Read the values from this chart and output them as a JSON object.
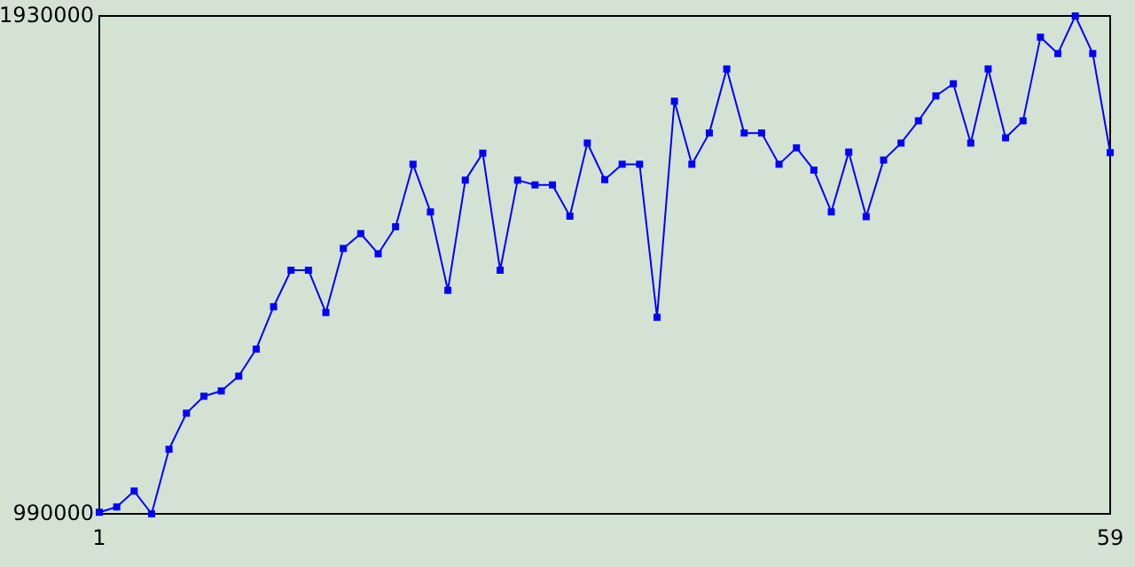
{
  "chart_data": {
    "type": "line",
    "x": [
      1,
      2,
      3,
      4,
      5,
      6,
      7,
      8,
      9,
      10,
      11,
      12,
      13,
      14,
      15,
      16,
      17,
      18,
      19,
      20,
      21,
      22,
      23,
      24,
      25,
      26,
      27,
      28,
      29,
      30,
      31,
      32,
      33,
      34,
      35,
      36,
      37,
      38,
      39,
      40,
      41,
      42,
      43,
      44,
      45,
      46,
      47,
      48,
      49,
      50,
      51,
      52,
      53,
      54,
      55,
      56,
      57,
      58,
      59
    ],
    "series": [
      {
        "color": "#0000ff",
        "values": [
          993000,
          1003000,
          1033000,
          990000,
          1112000,
          1180000,
          1212000,
          1222000,
          1250000,
          1301000,
          1381000,
          1450000,
          1450000,
          1370000,
          1491000,
          1519000,
          1481000,
          1532000,
          1650000,
          1560000,
          1412000,
          1620000,
          1671000,
          1450000,
          1620000,
          1611000,
          1611000,
          1552000,
          1690000,
          1621000,
          1650000,
          1650000,
          1361000,
          1769000,
          1650000,
          1709000,
          1830000,
          1709000,
          1709000,
          1650000,
          1681000,
          1639000,
          1560000,
          1673000,
          1551000,
          1658000,
          1690000,
          1732000,
          1779000,
          1802000,
          1690000,
          1830000,
          1700000,
          1732000,
          1890000,
          1859000,
          1930000,
          1859000,
          1672000
        ]
      }
    ],
    "xlim": [
      1,
      59
    ],
    "xticks": [
      1,
      59
    ],
    "ylim": [
      990000,
      1930000
    ],
    "yticks": [
      990000,
      1930000
    ],
    "marker": "square"
  }
}
